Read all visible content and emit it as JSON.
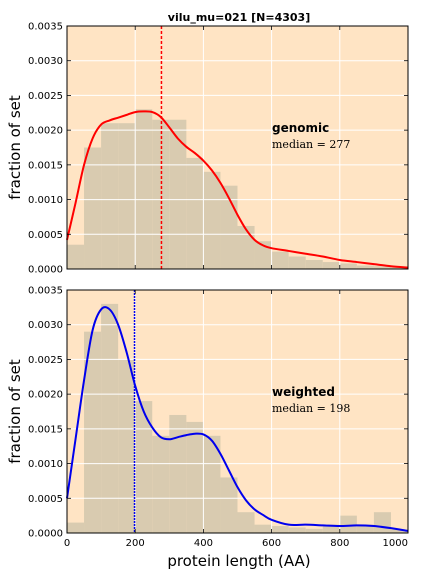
{
  "figure": {
    "title": "vilu_mu=021 [N=4303]",
    "colors": {
      "background": "#ffe4c4",
      "hist_fill": "#d9cbb0",
      "grid": "#ffffff",
      "genomic_line": "#ff0000",
      "weighted_line": "#0000ee"
    }
  },
  "chart_data": [
    {
      "type": "histogram+kde",
      "name": "genomic",
      "title": "vilu_mu=021 [N=4303]",
      "ylabel": "fraction of set",
      "xlabel": "",
      "xlim": [
        0,
        1000
      ],
      "ylim": [
        0,
        0.0035
      ],
      "xticks": [
        0,
        200,
        400,
        600,
        800,
        1000
      ],
      "yticks": [
        0.0,
        0.0005,
        0.001,
        0.0015,
        0.002,
        0.0025,
        0.003,
        0.0035
      ],
      "ytick_labels": [
        "0.0000",
        "0.0005",
        "0.0010",
        "0.0015",
        "0.0020",
        "0.0025",
        "0.0030",
        "0.0035"
      ],
      "show_xtick_labels": false,
      "grid": true,
      "annotation": {
        "label": "genomic",
        "median_text": "median = 277",
        "median_value": 277
      },
      "histogram": {
        "bin_edges": [
          0,
          50,
          100,
          150,
          200,
          250,
          300,
          350,
          400,
          450,
          500,
          550,
          600,
          650,
          700,
          750,
          800,
          850,
          900,
          950,
          1000
        ],
        "values": [
          0.00035,
          0.00175,
          0.0021,
          0.0021,
          0.0023,
          0.00215,
          0.00215,
          0.0016,
          0.0014,
          0.0012,
          0.00062,
          0.0004,
          0.00025,
          0.00018,
          0.00013,
          0.0001,
          8e-05,
          5e-05,
          4e-05,
          2e-05
        ]
      },
      "kde": {
        "x": [
          0,
          25,
          50,
          75,
          100,
          125,
          150,
          175,
          200,
          225,
          250,
          275,
          300,
          325,
          350,
          375,
          400,
          425,
          450,
          475,
          500,
          525,
          550,
          575,
          600,
          650,
          700,
          750,
          800,
          850,
          900,
          950,
          1000
        ],
        "y": [
          0.00042,
          0.00095,
          0.0015,
          0.00188,
          0.00208,
          0.00214,
          0.00218,
          0.00222,
          0.00226,
          0.00227,
          0.00226,
          0.00219,
          0.00204,
          0.00188,
          0.00176,
          0.00167,
          0.00156,
          0.00142,
          0.00124,
          0.00102,
          0.00078,
          0.00057,
          0.00042,
          0.00034,
          0.0003,
          0.00026,
          0.00022,
          0.00018,
          0.00013,
          0.0001,
          7e-05,
          4e-05,
          2e-05
        ]
      },
      "median_line_x": 277
    },
    {
      "type": "histogram+kde",
      "name": "weighted",
      "title": "",
      "ylabel": "fraction of set",
      "xlabel": "protein length (AA)",
      "xlim": [
        0,
        1000
      ],
      "ylim": [
        0,
        0.0035
      ],
      "xticks": [
        0,
        200,
        400,
        600,
        800,
        1000
      ],
      "xtick_labels": [
        "0",
        "200",
        "400",
        "600",
        "800",
        "1000"
      ],
      "yticks": [
        0.0,
        0.0005,
        0.001,
        0.0015,
        0.002,
        0.0025,
        0.003,
        0.0035
      ],
      "ytick_labels": [
        "0.0000",
        "0.0005",
        "0.0010",
        "0.0015",
        "0.0020",
        "0.0025",
        "0.0030",
        "0.0035"
      ],
      "show_xtick_labels": true,
      "grid": true,
      "annotation": {
        "label": "weighted",
        "median_text": "median = 198",
        "median_value": 198
      },
      "histogram": {
        "bin_edges": [
          0,
          50,
          100,
          150,
          200,
          250,
          300,
          350,
          400,
          450,
          500,
          550,
          600,
          650,
          700,
          750,
          800,
          850,
          900,
          950,
          1000
        ],
        "values": [
          0.00015,
          0.0029,
          0.0033,
          0.0025,
          0.0019,
          0.0014,
          0.0017,
          0.0016,
          0.0014,
          0.0008,
          0.0003,
          0.00012,
          0.0001,
          8e-05,
          6e-05,
          0.00012,
          0.00025,
          0.00012,
          0.0003,
          5e-05
        ]
      },
      "kde": {
        "x": [
          0,
          25,
          50,
          75,
          100,
          125,
          150,
          175,
          200,
          225,
          250,
          275,
          300,
          325,
          350,
          375,
          400,
          425,
          450,
          475,
          500,
          525,
          550,
          575,
          600,
          650,
          700,
          750,
          800,
          850,
          900,
          950,
          1000
        ],
        "y": [
          0.0005,
          0.00135,
          0.0022,
          0.00292,
          0.00322,
          0.00322,
          0.003,
          0.0026,
          0.00212,
          0.00175,
          0.00152,
          0.00138,
          0.00135,
          0.00138,
          0.00141,
          0.00143,
          0.00142,
          0.00133,
          0.00114,
          0.0009,
          0.00066,
          0.00047,
          0.00034,
          0.00026,
          0.00019,
          0.00012,
          0.00012,
          0.00011,
          0.0001,
          0.00011,
          0.0001,
          7e-05,
          3e-05
        ]
      },
      "median_line_x": 198
    }
  ]
}
